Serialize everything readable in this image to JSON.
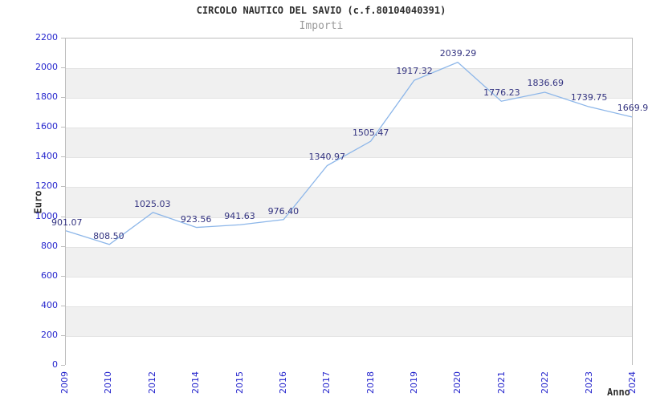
{
  "chart_data": {
    "type": "line",
    "title": "CIRCOLO NAUTICO DEL SAVIO (c.f.80104040391)",
    "subtitle": "Importi",
    "xlabel": "Anno",
    "ylabel": "Euro",
    "categories": [
      "2009",
      "2010",
      "2012",
      "2014",
      "2015",
      "2016",
      "2017",
      "2018",
      "2019",
      "2020",
      "2021",
      "2022",
      "2023",
      "2024"
    ],
    "series": [
      {
        "name": "Importi",
        "values": [
          901.07,
          808.5,
          1025.03,
          923.56,
          941.63,
          976.4,
          1340.97,
          1505.47,
          1917.32,
          2039.29,
          1776.23,
          1836.69,
          1739.75,
          1669.9
        ],
        "point_labels": [
          "901.07",
          "808.50",
          "1025.03",
          "923.56",
          "941.63",
          "976.40",
          "1340.97",
          "1505.47",
          "1917.32",
          "2039.29",
          "1776.23",
          "1836.69",
          "1739.75",
          "1669.9"
        ]
      }
    ],
    "ylim": [
      0,
      2200
    ],
    "ytick_step": 200,
    "grid": "alternating-horizontal-bands",
    "legend": "none",
    "colors": {
      "line": "#8cb6e9",
      "tick_label": "#2424cd",
      "point_label": "#333380",
      "band": "#f0f0f0",
      "grid_line": "#e3e3e3",
      "plot_border": "#bdbdbd",
      "title": "#2e2e2e",
      "subtitle": "#9b9b9b",
      "axis_title": "#2e2e2e"
    }
  }
}
